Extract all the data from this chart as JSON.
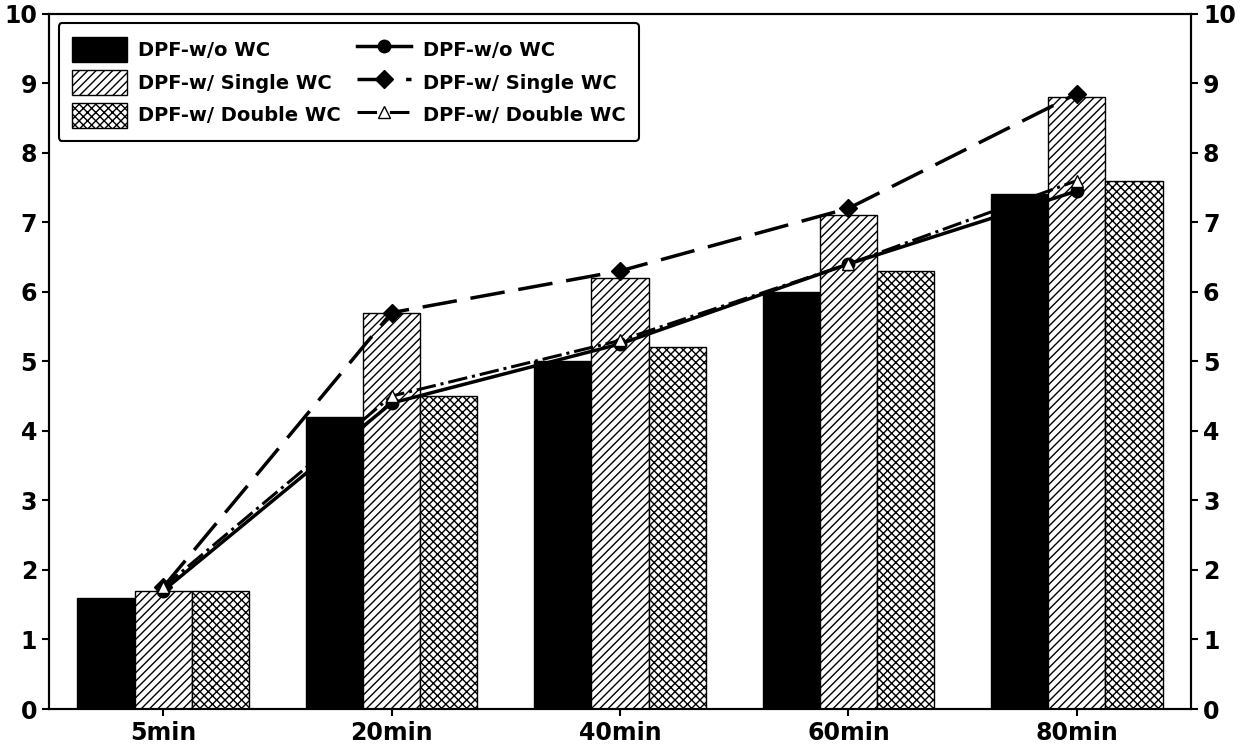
{
  "x_labels": [
    "5min",
    "20min",
    "40min",
    "60min",
    "80min"
  ],
  "bar_wo_wc": [
    1.6,
    4.2,
    5.0,
    6.0,
    7.4
  ],
  "bar_single_wc": [
    1.7,
    5.7,
    6.2,
    7.1,
    8.8
  ],
  "bar_double_wc": [
    1.7,
    4.5,
    5.2,
    6.3,
    7.6
  ],
  "line_wo_wc": [
    1.7,
    4.4,
    5.25,
    6.4,
    7.45
  ],
  "line_single_wc": [
    1.75,
    5.7,
    6.3,
    7.2,
    8.85
  ],
  "line_double_wc": [
    1.75,
    4.5,
    5.3,
    6.4,
    7.6
  ],
  "ylim": [
    0,
    10
  ],
  "yticks": [
    0,
    1,
    2,
    3,
    4,
    5,
    6,
    7,
    8,
    9,
    10
  ],
  "bar_width": 0.25
}
